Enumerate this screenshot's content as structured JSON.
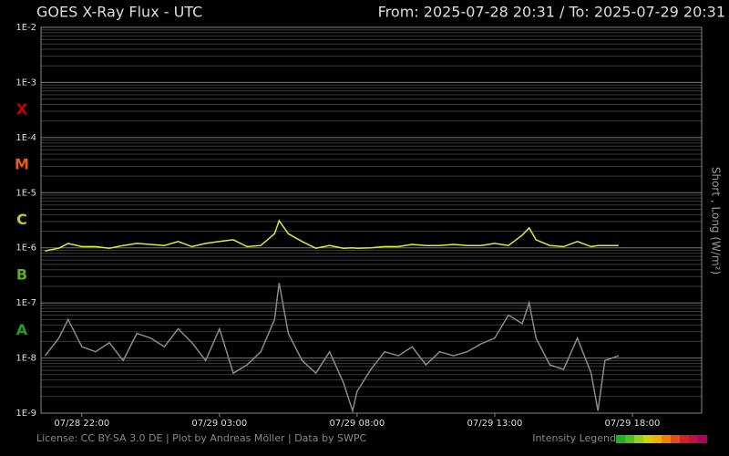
{
  "chart_data": {
    "type": "line",
    "title": "GOES X-Ray Flux - UTC",
    "subtitle": "From: 2025-07-28 20:31  /  To: 2025-07-29 20:31",
    "y_label": "Short , Long (W/m²)",
    "footer": "License: CC BY-SA 3.0 DE | Plot by Andreas Möller | Data by SWPC",
    "legend_title": "Intensity Legend",
    "legend_colors": [
      "#20b020",
      "#50c020",
      "#90d020",
      "#d0d000",
      "#f0b000",
      "#f08000",
      "#e05010",
      "#d02020",
      "#c01040",
      "#b00060"
    ],
    "log_y": true,
    "grid": true,
    "xlim": [
      "07/28 20:31",
      "07/29 20:31"
    ],
    "xticks": [
      "07/28 22:00",
      "07/29 03:00",
      "07/29 08:00",
      "07/29 13:00",
      "07/29 18:00"
    ],
    "ylim": [
      1e-09,
      0.01
    ],
    "yticks": [
      {
        "value": 1e-09,
        "label": "1E-9"
      },
      {
        "value": 1e-08,
        "label": "1E-8"
      },
      {
        "value": 1e-07,
        "label": "1E-7"
      },
      {
        "value": 1e-06,
        "label": "1E-6"
      },
      {
        "value": 1e-05,
        "label": "1E-5"
      },
      {
        "value": 0.0001,
        "label": "1E-4"
      },
      {
        "value": 0.001,
        "label": "1E-3"
      },
      {
        "value": 0.01,
        "label": "1E-2"
      }
    ],
    "flare_classes": [
      {
        "label": "A",
        "value": 1e-08,
        "color": "#20a020"
      },
      {
        "label": "B",
        "value": 1e-07,
        "color": "#60b020"
      },
      {
        "label": "C",
        "value": 1e-06,
        "color": "#c8d000"
      },
      {
        "label": "M",
        "value": 1e-05,
        "color": "#e06010"
      },
      {
        "label": "X",
        "value": 0.0001,
        "color": "#c80000"
      }
    ],
    "x": [
      "07/28 20:40",
      "07/28 21:10",
      "07/28 21:30",
      "07/28 22:00",
      "07/28 22:30",
      "07/28 23:00",
      "07/28 23:30",
      "07/29 00:00",
      "07/29 00:30",
      "07/29 01:00",
      "07/29 01:30",
      "07/29 02:00",
      "07/29 02:30",
      "07/29 03:00",
      "07/29 03:30",
      "07/29 04:00",
      "07/29 04:30",
      "07/29 05:00",
      "07/29 05:10",
      "07/29 05:30",
      "07/29 06:00",
      "07/29 06:30",
      "07/29 07:00",
      "07/29 07:30",
      "07/29 07:50",
      "07/29 08:00",
      "07/29 08:30",
      "07/29 09:00",
      "07/29 09:30",
      "07/29 10:00",
      "07/29 10:30",
      "07/29 11:00",
      "07/29 11:30",
      "07/29 12:00",
      "07/29 12:30",
      "07/29 13:00",
      "07/29 13:30",
      "07/29 14:00",
      "07/29 14:15",
      "07/29 14:30",
      "07/29 15:00",
      "07/29 15:30",
      "07/29 16:00",
      "07/29 16:30",
      "07/29 16:45",
      "07/29 17:00",
      "07/29 17:30"
    ],
    "series": [
      {
        "name": "Long",
        "color": "#d8f028",
        "values": [
          8.8e-07,
          9.8e-07,
          1.2e-06,
          1.05e-06,
          1.05e-06,
          9.8e-07,
          1.1e-06,
          1.2e-06,
          1.15e-06,
          1.1e-06,
          1.3e-06,
          1.05e-06,
          1.2e-06,
          1.3e-06,
          1.4e-06,
          1.05e-06,
          1.1e-06,
          1.8e-06,
          3.1e-06,
          1.8e-06,
          1.3e-06,
          9.8e-07,
          1.1e-06,
          9.8e-07,
          1e-06,
          9.8e-07,
          1e-06,
          1.05e-06,
          1.05e-06,
          1.15e-06,
          1.1e-06,
          1.1e-06,
          1.15e-06,
          1.1e-06,
          1.1e-06,
          1.2e-06,
          1.1e-06,
          1.7e-06,
          2.3e-06,
          1.4e-06,
          1.1e-06,
          1.05e-06,
          1.3e-06,
          1.05e-06,
          1.1e-06,
          1.1e-06,
          1.1e-06
        ]
      },
      {
        "name": "Short",
        "color": "#8a8a8a",
        "values": [
          1.1e-08,
          2.3e-08,
          5e-08,
          1.6e-08,
          1.3e-08,
          1.9e-08,
          9e-09,
          2.8e-08,
          2.3e-08,
          1.6e-08,
          3.4e-08,
          1.9e-08,
          9e-09,
          3.4e-08,
          5.3e-09,
          7.5e-09,
          1.3e-08,
          5e-08,
          2.3e-07,
          2.8e-08,
          9e-09,
          5.3e-09,
          1.3e-08,
          3.6e-09,
          1.1e-09,
          2.5e-09,
          6.2e-09,
          1.3e-08,
          1.1e-08,
          1.6e-08,
          7.5e-09,
          1.3e-08,
          1.1e-08,
          1.3e-08,
          1.8e-08,
          2.3e-08,
          6e-08,
          4.2e-08,
          1e-07,
          2.3e-08,
          7.5e-09,
          6.2e-09,
          2.3e-08,
          5.3e-09,
          1.1e-09,
          9e-09,
          1.1e-08
        ]
      }
    ]
  }
}
